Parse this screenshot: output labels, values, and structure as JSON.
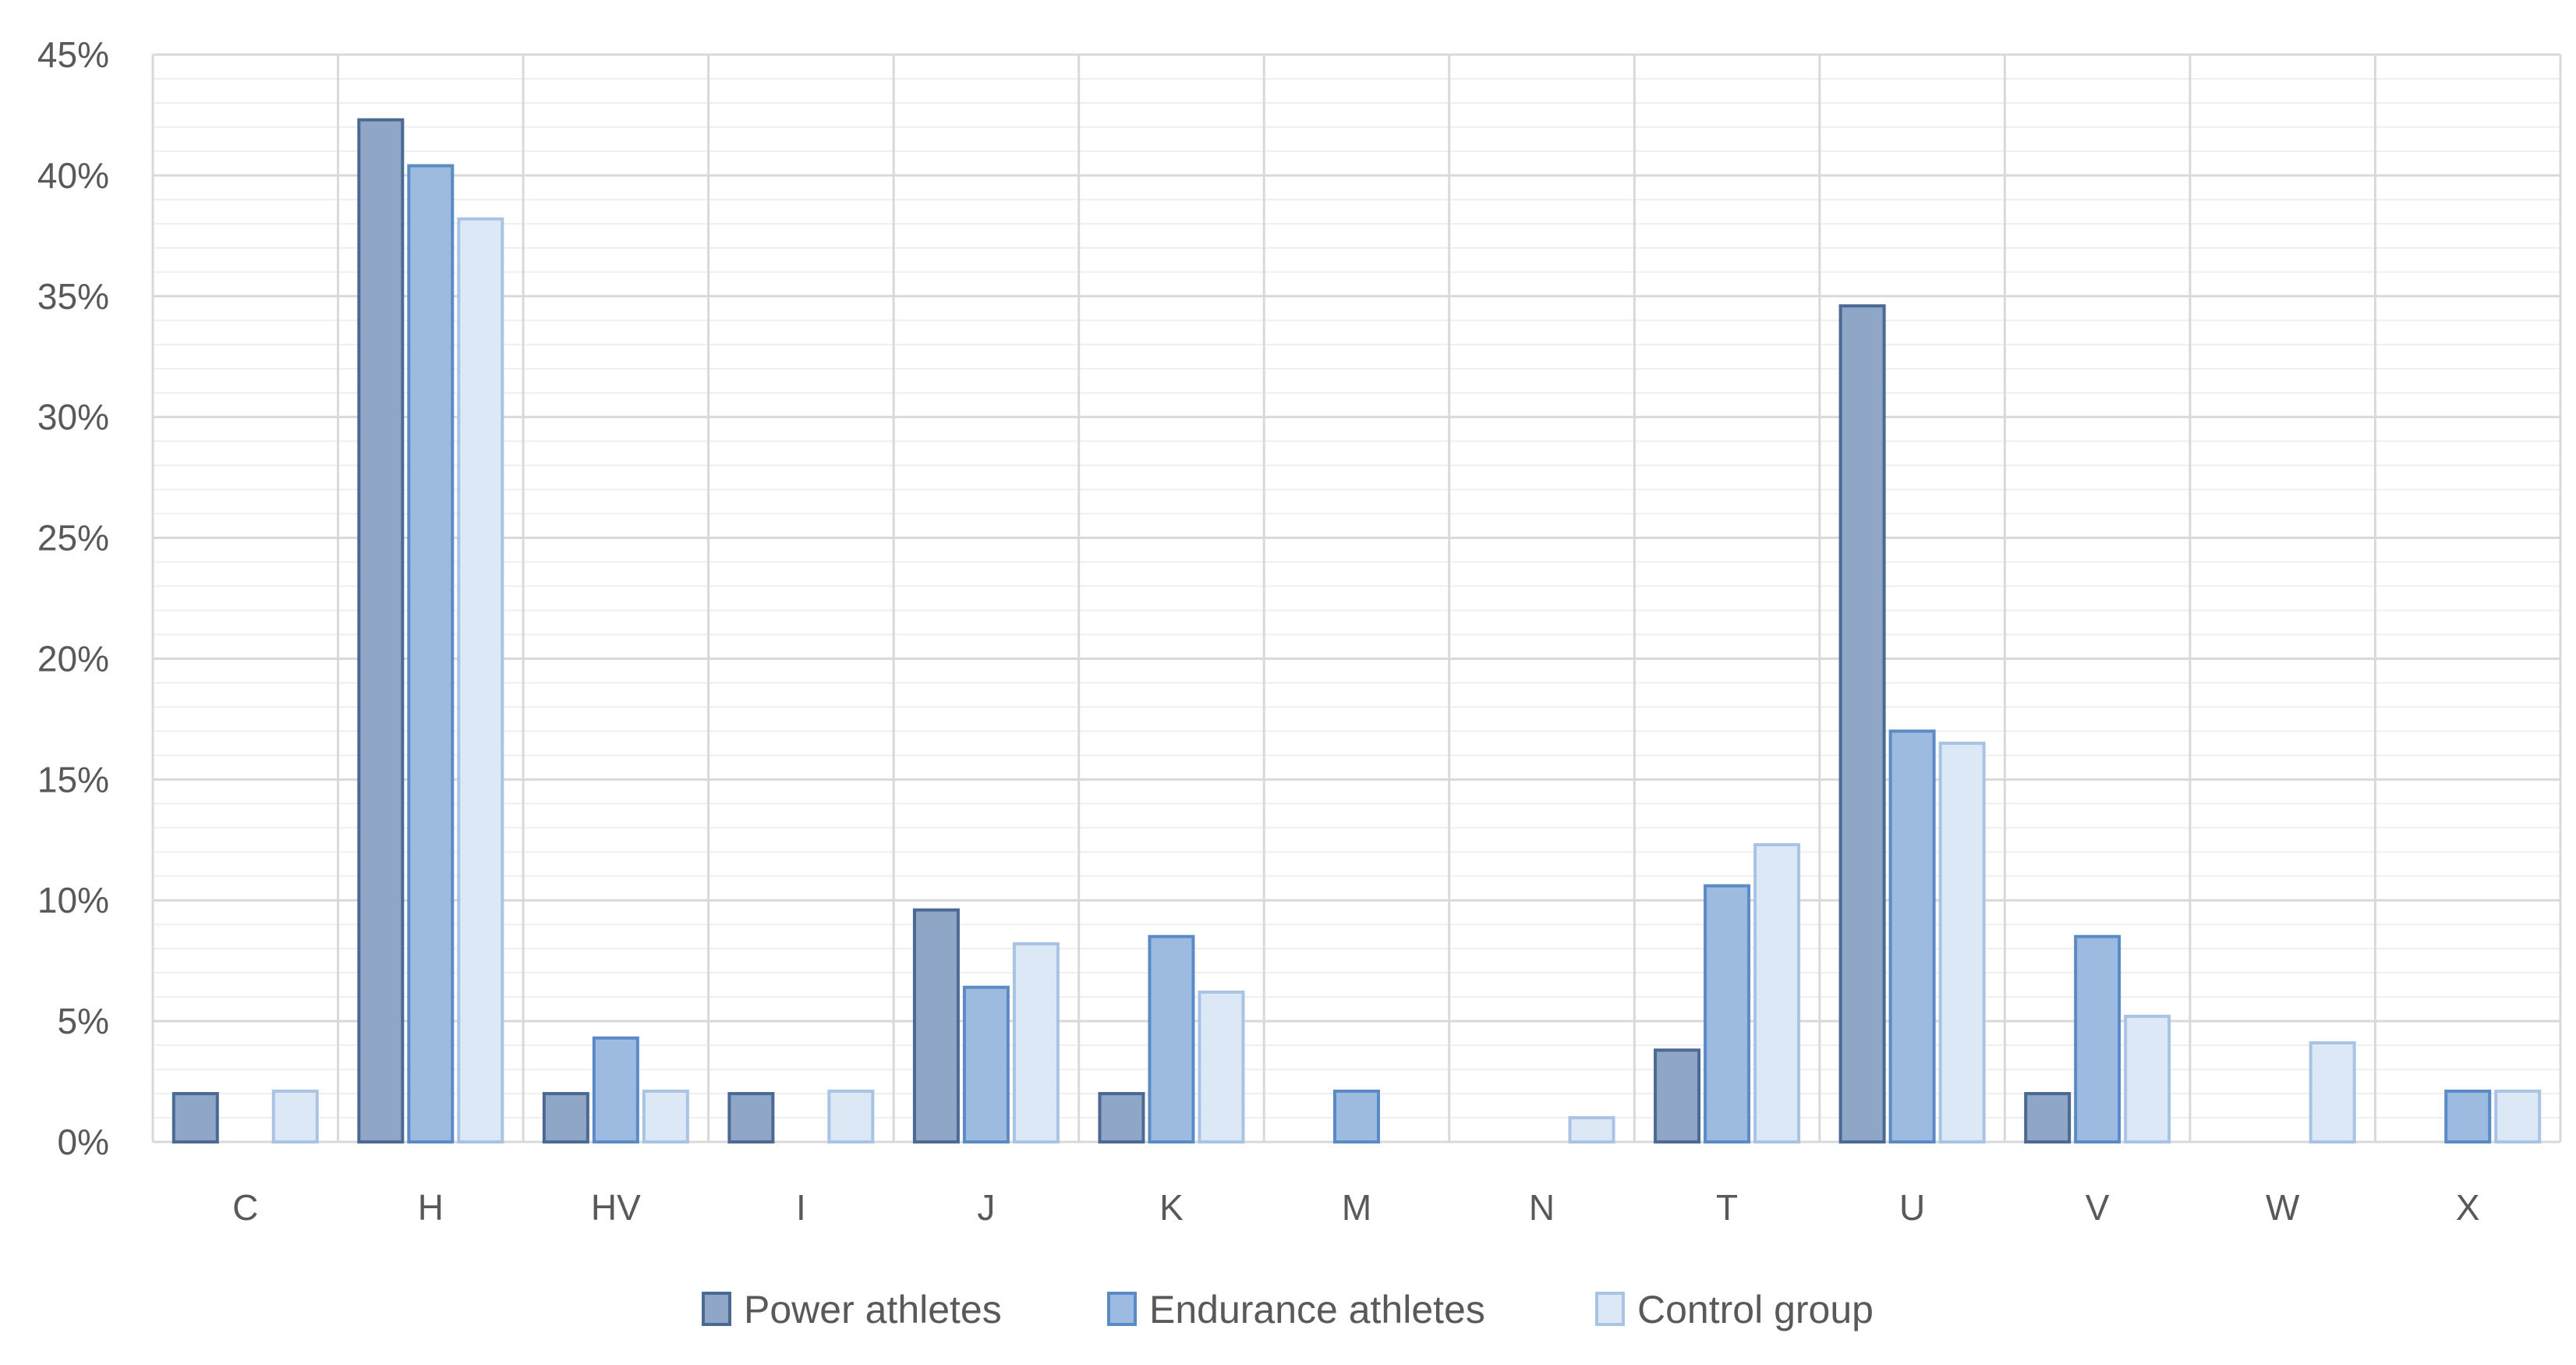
{
  "chart_data": {
    "type": "bar",
    "categories": [
      "C",
      "H",
      "HV",
      "I",
      "J",
      "K",
      "M",
      "N",
      "T",
      "U",
      "V",
      "W",
      "X"
    ],
    "series": [
      {
        "name": "Power athletes",
        "values": [
          2.0,
          42.3,
          2.0,
          2.0,
          9.6,
          2.0,
          0,
          0,
          3.8,
          34.6,
          2.0,
          0,
          0
        ],
        "fill": "#8fa6c6",
        "stroke": "#4a6a94"
      },
      {
        "name": "Endurance athletes",
        "values": [
          0,
          40.4,
          4.3,
          0,
          6.4,
          8.5,
          2.1,
          0,
          10.6,
          17.0,
          8.5,
          0,
          2.1
        ],
        "fill": "#9dbae0",
        "stroke": "#5b8bc4"
      },
      {
        "name": "Control group",
        "values": [
          2.1,
          38.2,
          2.1,
          2.1,
          8.2,
          6.2,
          0,
          1.0,
          12.3,
          16.5,
          5.2,
          4.1,
          2.1
        ],
        "fill": "#dce8f6",
        "stroke": "#a9c3e4"
      }
    ],
    "y_ticks": [
      "0%",
      "5%",
      "10%",
      "15%",
      "20%",
      "25%",
      "30%",
      "35%",
      "40%",
      "45%"
    ],
    "ylim": [
      0,
      45
    ],
    "xlabel": "",
    "ylabel": "",
    "grid": true,
    "legend_position": "bottom"
  }
}
